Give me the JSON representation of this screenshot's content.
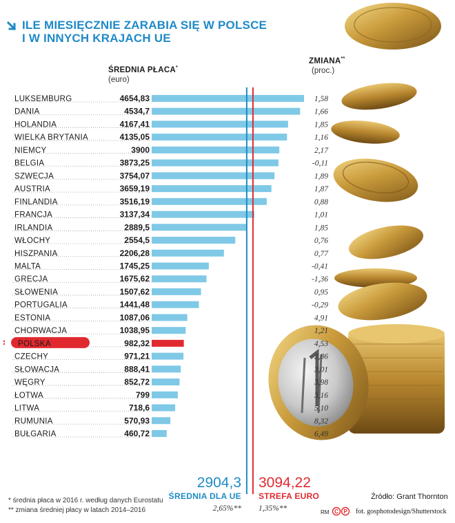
{
  "title": {
    "line1": "ILE MIESIĘCZNIE ZARABIA SIĘ W POLSCE",
    "line2": "I W INNYCH KRAJACH UE"
  },
  "headers": {
    "salary": "ŚREDNIA PŁACA",
    "salary_mark": "*",
    "salary_unit": "(euro)",
    "change": "ZMIANA",
    "change_mark": "**",
    "change_unit": "(proc.)"
  },
  "chart_data": {
    "type": "bar",
    "orientation": "horizontal",
    "categories": [
      "LUKSEMBURG",
      "DANIA",
      "HOLANDIA",
      "WIELKA BRYTANIA",
      "NIEMCY",
      "BELGIA",
      "SZWECJA",
      "AUSTRIA",
      "FINLANDIA",
      "FRANCJA",
      "IRLANDIA",
      "WŁOCHY",
      "HISZPANIA",
      "MALTA",
      "GRECJA",
      "SŁOWENIA",
      "PORTUGALIA",
      "ESTONIA",
      "CHORWACJA",
      "POLSKA",
      "CZECHY",
      "SŁOWACJA",
      "WĘGRY",
      "ŁOTWA",
      "LITWA",
      "RUMUNIA",
      "BUŁGARIA"
    ],
    "value_labels": [
      "4654,83",
      "4534,7",
      "4167,41",
      "4135,05",
      "3900",
      "3873,25",
      "3754,07",
      "3659,19",
      "3516,19",
      "3137,34",
      "2889,5",
      "2554,5",
      "2206,28",
      "1745,25",
      "1675,62",
      "1507,62",
      "1441,48",
      "1087,06",
      "1038,95",
      "982,32",
      "971,21",
      "888,41",
      "852,72",
      "799",
      "718,6",
      "570,93",
      "460,72"
    ],
    "values": [
      4654.83,
      4534.7,
      4167.41,
      4135.05,
      3900,
      3873.25,
      3754.07,
      3659.19,
      3516.19,
      3137.34,
      2889.5,
      2554.5,
      2206.28,
      1745.25,
      1675.62,
      1507.62,
      1441.48,
      1087.06,
      1038.95,
      982.32,
      971.21,
      888.41,
      852.72,
      799,
      718.6,
      570.93,
      460.72
    ],
    "change_labels": [
      "1,58",
      "1,66",
      "1,85",
      "1,16",
      "2,17",
      "-0,11",
      "1,89",
      "1,87",
      "0,88",
      "1,01",
      "1,85",
      "0,76",
      "0,77",
      "-0,41",
      "-1,36",
      "0,95",
      "-0,29",
      "4,91",
      "1,21",
      "4,53",
      "2,86",
      "3,01",
      "3,98",
      "3,16",
      "5,10",
      "8,32",
      "6,49"
    ],
    "highlight": "POLSKA",
    "colors": {
      "bar": "#7fc9e6",
      "highlight_bar": "#e0292f",
      "eu_line": "#1e8ac7",
      "euro_line": "#e0292f",
      "title": "#1e8ac7"
    },
    "xlim": [
      0,
      4900
    ],
    "reference_lines": [
      {
        "name": "ŚREDNIA DLA UE",
        "value": 2904.3,
        "value_label": "2904,3",
        "change_label": "2,65%**",
        "color": "#1e8ac7"
      },
      {
        "name": "STREFA EURO",
        "value": 3094.22,
        "value_label": "3094,22",
        "change_label": "1,35%**",
        "color": "#e0292f"
      }
    ]
  },
  "footnotes": {
    "note1": "* średnia płaca w 2016 r. według danych Eurostatu",
    "note2": "** zmiana średniej płacy w latach 2014–2016"
  },
  "source": "Źródło: Grant Thornton",
  "rm_label": "RM",
  "photo_credit": "fot. gosphotodesign/Shutterstock",
  "icons": [
    "arrow-down-right-icon",
    "copyright-icon",
    "coins-illustration"
  ]
}
